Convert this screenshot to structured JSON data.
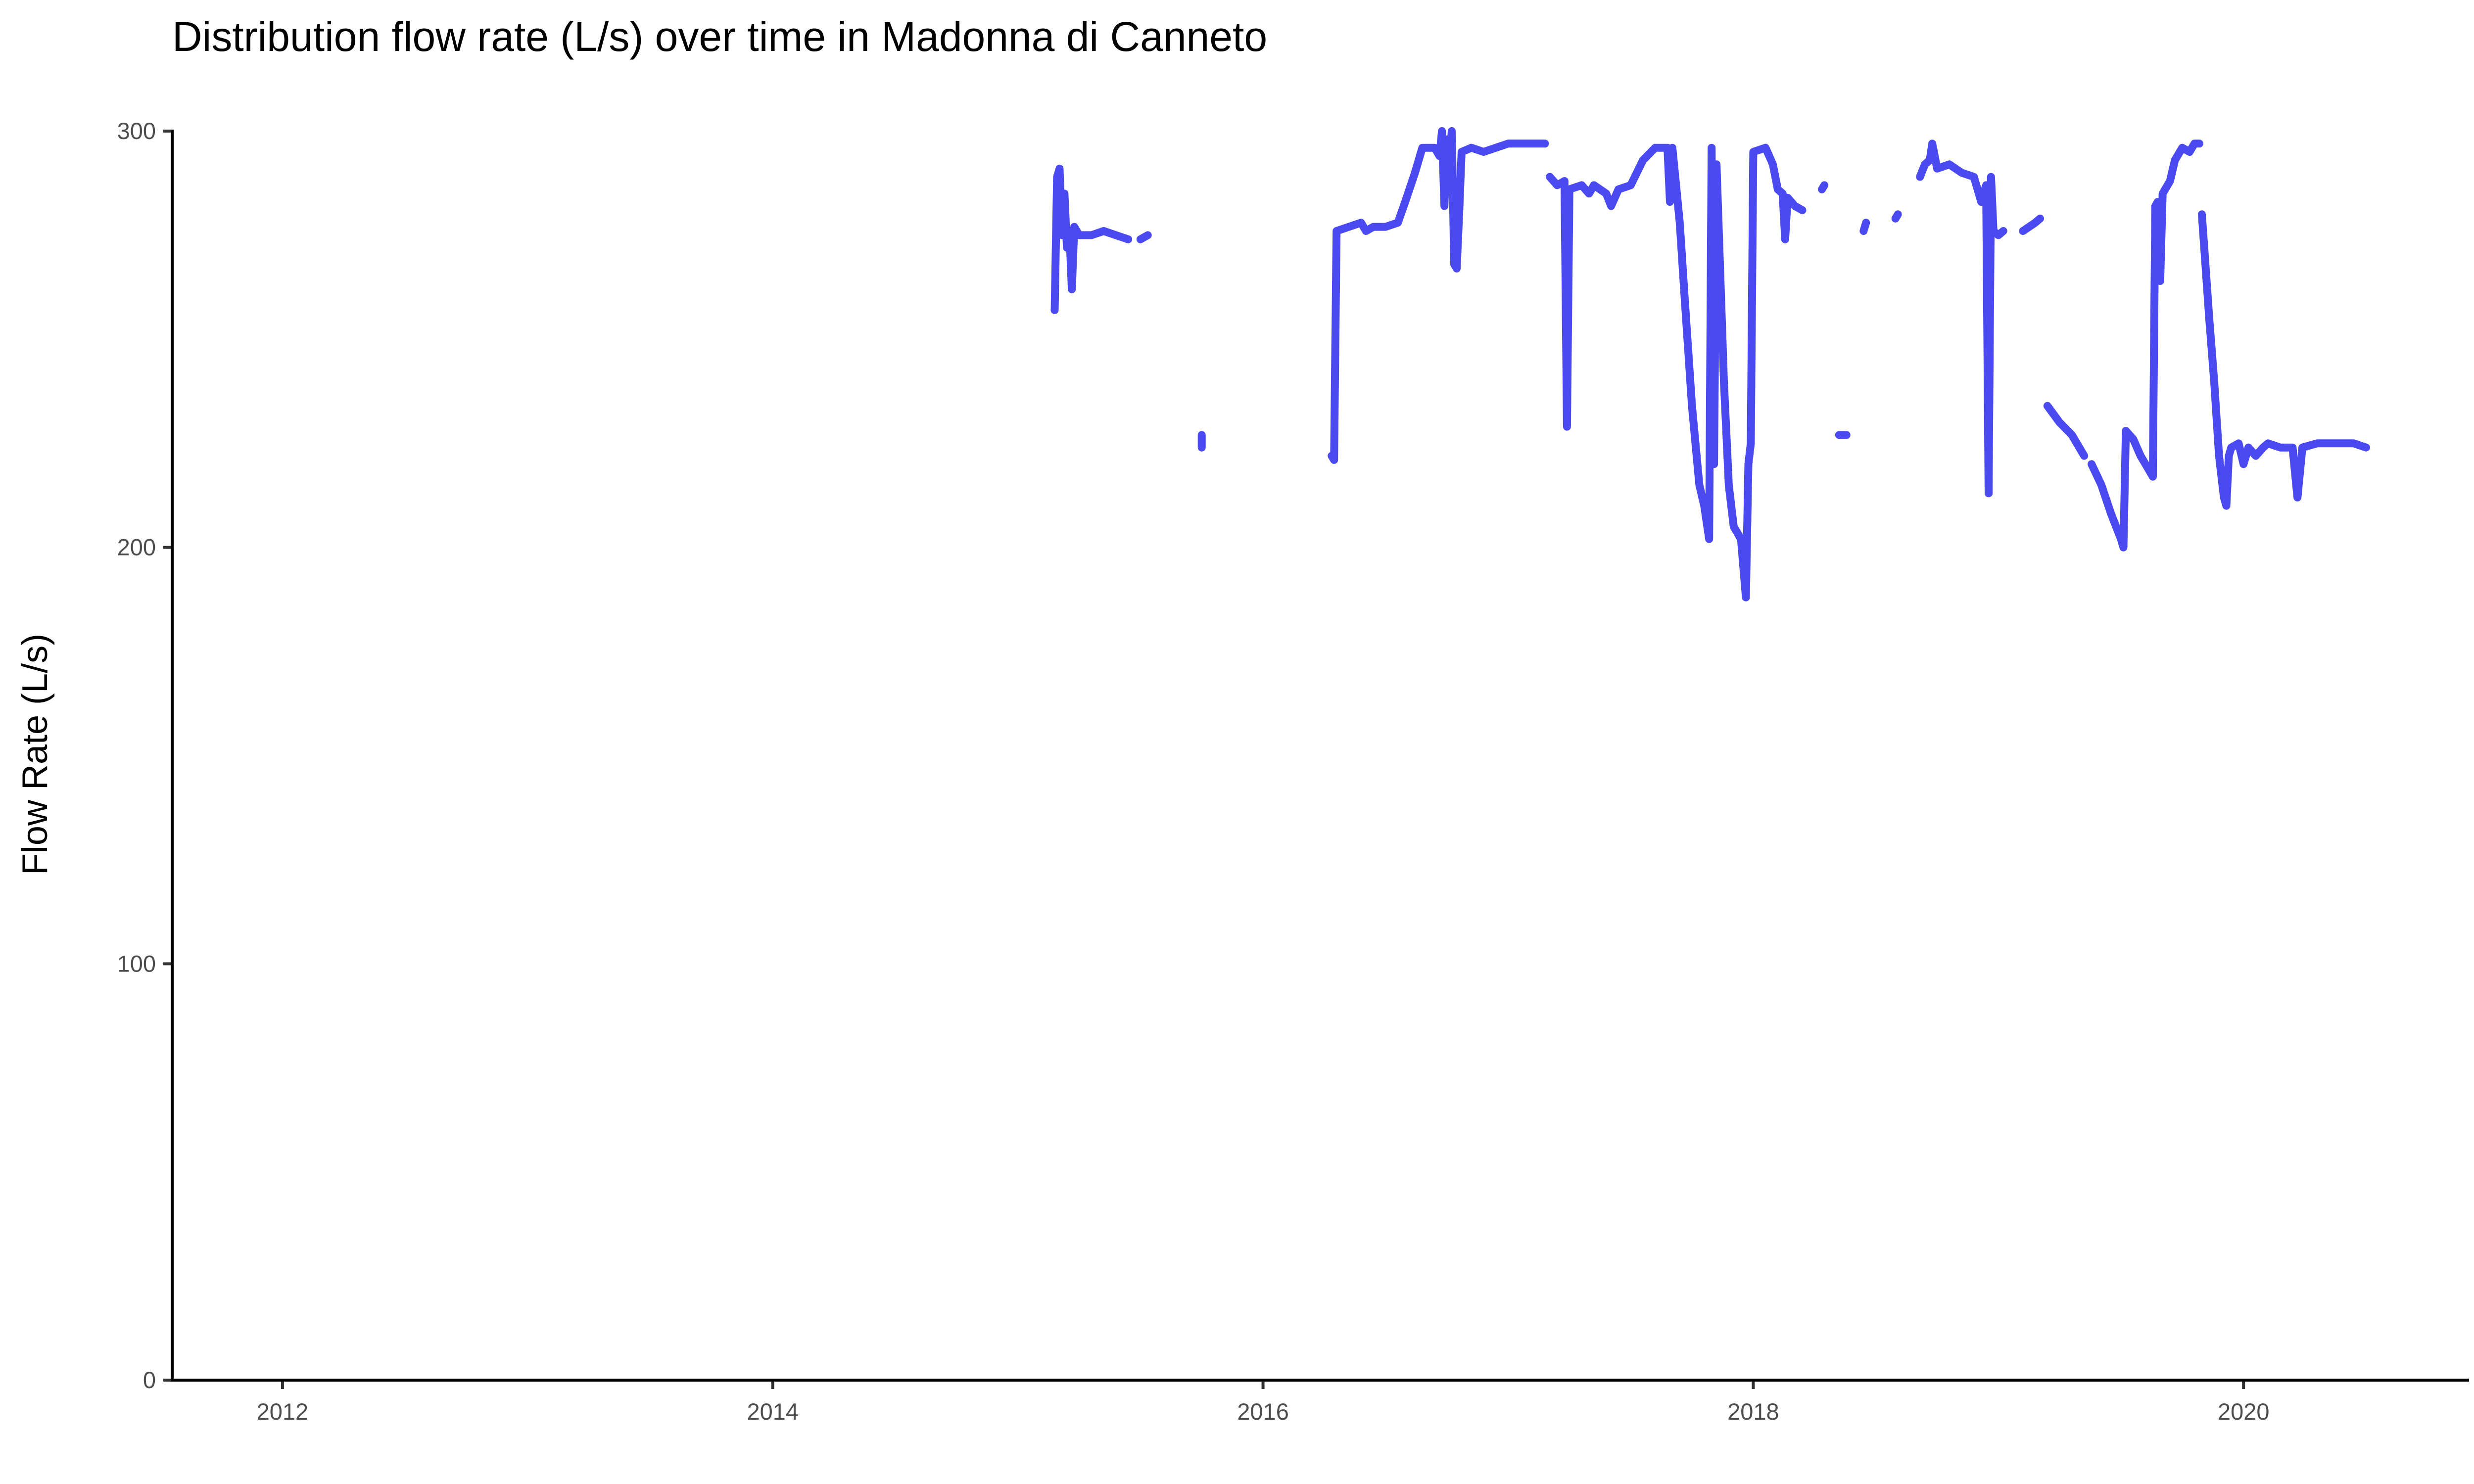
{
  "chart_data": {
    "type": "line",
    "title": "Distribution flow rate (L/s) over time in Madonna di Canneto",
    "xlabel": "",
    "ylabel": "Flow Rate (L/s)",
    "xlim": [
      2011.55,
      2020.92
    ],
    "ylim": [
      0,
      300
    ],
    "x_ticks": [
      "2012",
      "2014",
      "2016",
      "2018",
      "2020"
    ],
    "y_ticks": [
      "0",
      "100",
      "200",
      "300"
    ],
    "grid": false,
    "legend": "none",
    "colors": {
      "line": "#4a4af0",
      "axis": "#000000",
      "tick_label": "#4d4d4d"
    },
    "series": [
      {
        "segments": [
          [
            [
              2015.15,
              257
            ],
            [
              2015.16,
              289
            ],
            [
              2015.17,
              291
            ],
            [
              2015.18,
              275
            ],
            [
              2015.19,
              285
            ],
            [
              2015.2,
              272
            ],
            [
              2015.21,
              276
            ],
            [
              2015.22,
              262
            ],
            [
              2015.23,
              277
            ],
            [
              2015.25,
              275
            ],
            [
              2015.3,
              275
            ],
            [
              2015.35,
              276
            ],
            [
              2015.4,
              275
            ],
            [
              2015.45,
              274
            ]
          ],
          [
            [
              2015.5,
              274
            ],
            [
              2015.53,
              275
            ]
          ],
          [
            [
              2015.75,
              224
            ],
            [
              2015.75,
              227
            ]
          ],
          [
            [
              2016.28,
              222
            ],
            [
              2016.29,
              221
            ],
            [
              2016.3,
              276
            ],
            [
              2016.35,
              277
            ],
            [
              2016.4,
              278
            ],
            [
              2016.42,
              276
            ],
            [
              2016.45,
              277
            ],
            [
              2016.5,
              277
            ],
            [
              2016.55,
              278
            ],
            [
              2016.58,
              283
            ],
            [
              2016.62,
              290
            ],
            [
              2016.65,
              296
            ],
            [
              2016.7,
              296
            ],
            [
              2016.72,
              294
            ],
            [
              2016.73,
              300
            ],
            [
              2016.74,
              282
            ],
            [
              2016.75,
              298
            ],
            [
              2016.76,
              292
            ],
            [
              2016.77,
              300
            ],
            [
              2016.78,
              268
            ],
            [
              2016.79,
              267
            ],
            [
              2016.8,
              280
            ],
            [
              2016.81,
              295
            ],
            [
              2016.85,
              296
            ],
            [
              2016.9,
              295
            ],
            [
              2016.95,
              296
            ],
            [
              2017.0,
              297
            ],
            [
              2017.1,
              297
            ],
            [
              2017.15,
              297
            ]
          ],
          [
            [
              2017.17,
              289
            ],
            [
              2017.2,
              287
            ],
            [
              2017.23,
              288
            ],
            [
              2017.24,
              229
            ],
            [
              2017.25,
              286
            ],
            [
              2017.3,
              287
            ],
            [
              2017.33,
              285
            ],
            [
              2017.35,
              287
            ],
            [
              2017.4,
              285
            ],
            [
              2017.42,
              282
            ],
            [
              2017.45,
              286
            ],
            [
              2017.5,
              287
            ],
            [
              2017.55,
              293
            ],
            [
              2017.6,
              296
            ],
            [
              2017.65,
              296
            ],
            [
              2017.66,
              283
            ],
            [
              2017.67,
              296
            ],
            [
              2017.7,
              278
            ],
            [
              2017.72,
              260
            ],
            [
              2017.75,
              234
            ],
            [
              2017.78,
              215
            ],
            [
              2017.8,
              210
            ],
            [
              2017.82,
              202
            ],
            [
              2017.83,
              296
            ],
            [
              2017.84,
              220
            ],
            [
              2017.85,
              292
            ],
            [
              2017.88,
              240
            ],
            [
              2017.9,
              215
            ],
            [
              2017.92,
              205
            ],
            [
              2017.95,
              202
            ],
            [
              2017.97,
              188
            ],
            [
              2017.98,
              220
            ],
            [
              2017.99,
              225
            ],
            [
              2018.0,
              295
            ],
            [
              2018.05,
              296
            ],
            [
              2018.08,
              292
            ],
            [
              2018.1,
              286
            ],
            [
              2018.12,
              285
            ],
            [
              2018.13,
              274
            ],
            [
              2018.14,
              284
            ],
            [
              2018.17,
              282
            ],
            [
              2018.2,
              281
            ]
          ],
          [
            [
              2018.28,
              286
            ],
            [
              2018.29,
              287
            ]
          ],
          [
            [
              2018.35,
              227
            ],
            [
              2018.38,
              227
            ]
          ],
          [
            [
              2018.45,
              276
            ],
            [
              2018.46,
              278
            ]
          ],
          [
            [
              2018.58,
              279
            ],
            [
              2018.59,
              280
            ]
          ],
          [
            [
              2018.68,
              289
            ],
            [
              2018.7,
              292
            ],
            [
              2018.72,
              293
            ],
            [
              2018.73,
              297
            ],
            [
              2018.75,
              291
            ],
            [
              2018.8,
              292
            ],
            [
              2018.85,
              290
            ],
            [
              2018.9,
              289
            ],
            [
              2018.92,
              285
            ],
            [
              2018.93,
              283
            ],
            [
              2018.95,
              287
            ],
            [
              2018.96,
              213
            ],
            [
              2018.97,
              289
            ],
            [
              2018.98,
              276
            ],
            [
              2019.0,
              275
            ],
            [
              2019.02,
              276
            ]
          ],
          [
            [
              2019.1,
              276
            ],
            [
              2019.15,
              278
            ],
            [
              2019.17,
              279
            ]
          ],
          [
            [
              2019.2,
              234
            ],
            [
              2019.25,
              230
            ],
            [
              2019.3,
              227
            ],
            [
              2019.35,
              222
            ]
          ],
          [
            [
              2019.38,
              220
            ],
            [
              2019.42,
              215
            ],
            [
              2019.46,
              208
            ],
            [
              2019.5,
              202
            ],
            [
              2019.51,
              200
            ],
            [
              2019.52,
              228
            ],
            [
              2019.55,
              226
            ],
            [
              2019.58,
              222
            ],
            [
              2019.6,
              220
            ],
            [
              2019.62,
              218
            ],
            [
              2019.63,
              217
            ],
            [
              2019.64,
              282
            ],
            [
              2019.65,
              283
            ],
            [
              2019.66,
              264
            ],
            [
              2019.67,
              285
            ],
            [
              2019.7,
              288
            ],
            [
              2019.72,
              293
            ],
            [
              2019.75,
              296
            ],
            [
              2019.78,
              295
            ],
            [
              2019.8,
              297
            ],
            [
              2019.82,
              297
            ]
          ],
          [
            [
              2019.83,
              280
            ],
            [
              2019.86,
              255
            ],
            [
              2019.88,
              240
            ],
            [
              2019.9,
              222
            ],
            [
              2019.92,
              212
            ],
            [
              2019.93,
              210
            ],
            [
              2019.94,
              222
            ],
            [
              2019.95,
              224
            ],
            [
              2019.98,
              225
            ],
            [
              2020.0,
              220
            ],
            [
              2020.02,
              224
            ],
            [
              2020.05,
              222
            ],
            [
              2020.08,
              224
            ],
            [
              2020.1,
              225
            ],
            [
              2020.15,
              224
            ],
            [
              2020.2,
              224
            ],
            [
              2020.22,
              212
            ],
            [
              2020.24,
              224
            ],
            [
              2020.3,
              225
            ],
            [
              2020.35,
              225
            ],
            [
              2020.4,
              225
            ],
            [
              2020.45,
              225
            ],
            [
              2020.5,
              224
            ]
          ]
        ]
      }
    ]
  }
}
